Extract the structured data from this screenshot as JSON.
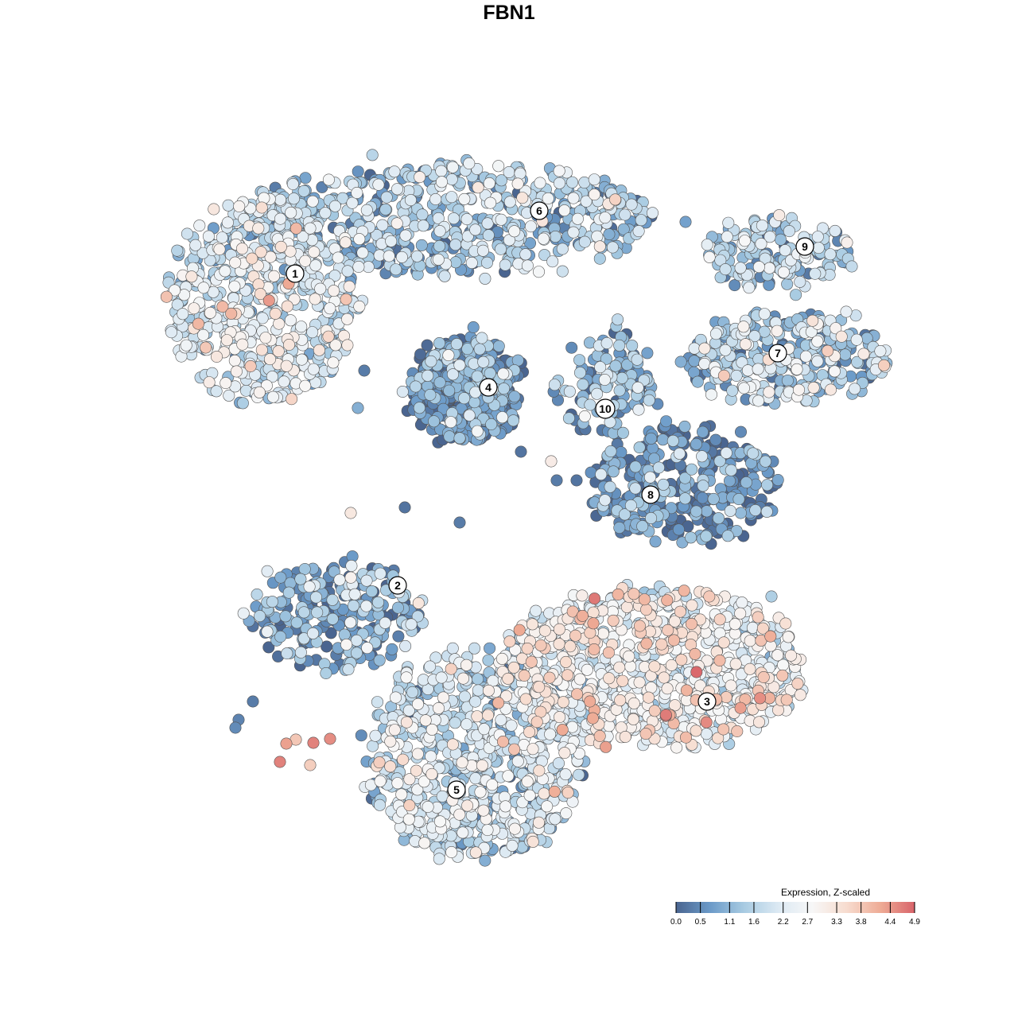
{
  "title": "FBN1",
  "chart_data": {
    "type": "scatter",
    "title": "FBN1",
    "xlabel": "",
    "ylabel": "",
    "color_scale": {
      "label": "Expression, Z-scaled",
      "min": 0.0,
      "max": 4.9,
      "ticks": [
        "0.0",
        "0.5",
        "1.1",
        "1.6",
        "2.2",
        "2.7",
        "3.3",
        "3.8",
        "4.4",
        "4.9"
      ],
      "colors": [
        "#4a6590",
        "#6b9ac8",
        "#a8cbe2",
        "#dce9f3",
        "#f7f7f7",
        "#f7dccf",
        "#eeab95",
        "#d8646a"
      ]
    },
    "point_outline": "#555555",
    "clusters": [
      {
        "label": "1",
        "mean_expression": 2.1
      },
      {
        "label": "2",
        "mean_expression": 0.9
      },
      {
        "label": "3",
        "mean_expression": 2.6
      },
      {
        "label": "4",
        "mean_expression": 0.6
      },
      {
        "label": "5",
        "mean_expression": 1.8
      },
      {
        "label": "6",
        "mean_expression": 1.4
      },
      {
        "label": "7",
        "mean_expression": 1.5
      },
      {
        "label": "8",
        "mean_expression": 0.5
      },
      {
        "label": "9",
        "mean_expression": 1.5
      },
      {
        "label": "10",
        "mean_expression": 0.9
      }
    ]
  }
}
